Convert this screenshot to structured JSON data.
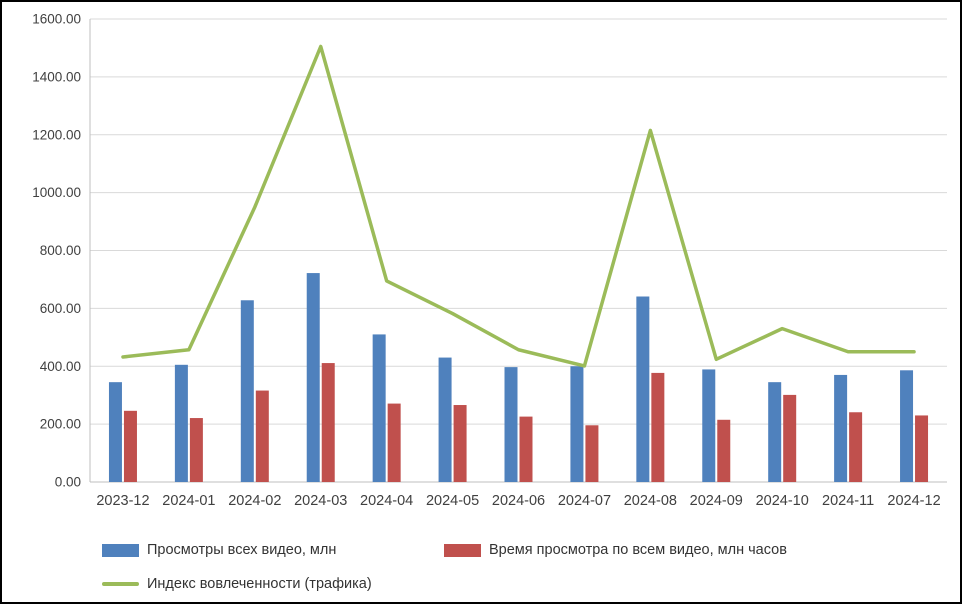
{
  "chart_data": {
    "type": "bar",
    "subtype": "combo-bar-line",
    "title": "",
    "xlabel": "",
    "ylabel": "",
    "categories": [
      "2023-12",
      "2024-01",
      "2024-02",
      "2024-03",
      "2024-04",
      "2024-05",
      "2024-06",
      "2024-07",
      "2024-08",
      "2024-09",
      "2024-10",
      "2024-11",
      "2024-12"
    ],
    "series": [
      {
        "name": "Просмотры всех видео, млн",
        "type": "bar",
        "color": "#4F81BD",
        "values": [
          345,
          405,
          628,
          722,
          510,
          430,
          397,
          400,
          641,
          389,
          345,
          370,
          386
        ]
      },
      {
        "name": "Время просмотра по всем видео, млн часов",
        "type": "bar",
        "color": "#C0504D",
        "values": [
          246,
          221,
          316,
          411,
          271,
          266,
          226,
          196,
          377,
          215,
          301,
          241,
          230
        ]
      },
      {
        "name": "Индекс вовлеченности (трафика)",
        "type": "line",
        "color": "#9BBB59",
        "values": [
          432,
          457,
          950,
          1505,
          695,
          582,
          457,
          401,
          1215,
          424,
          530,
          450,
          450
        ]
      }
    ],
    "ylim": [
      0,
      1600
    ],
    "ytick_step": 200,
    "ytick_labels": [
      "0.00",
      "200.00",
      "400.00",
      "600.00",
      "800.00",
      "1000.00",
      "1200.00",
      "1400.00",
      "1600.00"
    ],
    "grid": true,
    "legend_position": "bottom",
    "colors": {
      "gridline": "#D9D9D9",
      "axis_line": "#BFBFBF",
      "tick_label": "#404040"
    }
  }
}
